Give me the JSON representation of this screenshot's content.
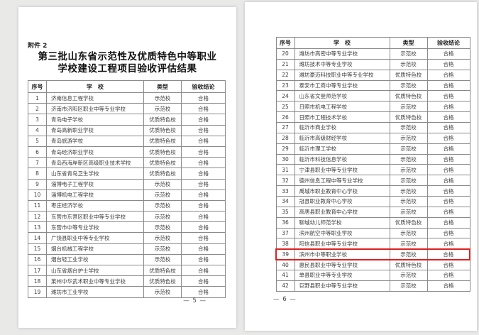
{
  "page_left": {
    "attachment_label": "附件 2",
    "title_line1": "第三批山东省示范性及优质特色中等职业",
    "title_line2": "学校建设工程项目验收评估结果",
    "page_number": "— 5 —",
    "table": {
      "headers": [
        "序号",
        "学　校",
        "类型",
        "验收结论"
      ],
      "rows": [
        [
          "1",
          "济南信息工程学校",
          "示范校",
          "合格"
        ],
        [
          "2",
          "济南市济阳区职业中等专业学校",
          "示范校",
          "合格"
        ],
        [
          "3",
          "青岛电子学校",
          "优质特色校",
          "合格"
        ],
        [
          "4",
          "青岛高新职业学校",
          "优质特色校",
          "合格"
        ],
        [
          "5",
          "青岛旅游学校",
          "优质特色校",
          "合格"
        ],
        [
          "6",
          "青岛经济职业学校",
          "优质特色校",
          "合格"
        ],
        [
          "7",
          "青岛西海岸新区高级职业技术学校",
          "优质特色校",
          "合格"
        ],
        [
          "8",
          "山东省青岛卫生学校",
          "优质特色校",
          "合格"
        ],
        [
          "9",
          "淄博电子工程学校",
          "示范校",
          "合格"
        ],
        [
          "10",
          "淄博机电工程学校",
          "示范校",
          "合格"
        ],
        [
          "11",
          "枣庄经济学校",
          "示范校",
          "合格"
        ],
        [
          "12",
          "东营市东营区职业中等专业学校",
          "示范校",
          "合格"
        ],
        [
          "13",
          "东营市中等专业学校",
          "示范校",
          "合格"
        ],
        [
          "14",
          "广饶县职业中等专业学校",
          "示范校",
          "合格"
        ],
        [
          "15",
          "烟台机械工程学校",
          "示范校",
          "合格"
        ],
        [
          "16",
          "烟台轻工业学校",
          "示范校",
          "合格"
        ],
        [
          "17",
          "山东省烟台护士学校",
          "优质特色校",
          "合格"
        ],
        [
          "18",
          "莱州中华武术职业中等专业学校",
          "优质特色校",
          "合格"
        ],
        [
          "19",
          "潍坊市工业学校",
          "示范校",
          "合格"
        ]
      ]
    }
  },
  "page_right": {
    "page_number": "— 6 —",
    "highlighted_row": "39",
    "highlight_color": "#dd2120",
    "table": {
      "headers": [
        "序号",
        "学　校",
        "类型",
        "验收结论"
      ],
      "rows": [
        [
          "20",
          "潍坊市高密中等专业学校",
          "示范校",
          "合格"
        ],
        [
          "21",
          "潍坊技术中等专业学校",
          "示范校",
          "合格"
        ],
        [
          "22",
          "潍坊豪迈科技职业中等专业学校",
          "优质特色校",
          "合格"
        ],
        [
          "23",
          "泰安市工商中等专业学校",
          "示范校",
          "合格"
        ],
        [
          "24",
          "山东省文登师范学校",
          "优质特色校",
          "合格"
        ],
        [
          "25",
          "日照市机电工程学校",
          "示范校",
          "合格"
        ],
        [
          "26",
          "日照市工程技术学校",
          "优质特色校",
          "合格"
        ],
        [
          "27",
          "临沂市商业学校",
          "示范校",
          "合格"
        ],
        [
          "28",
          "临沂市高级财经学校",
          "示范校",
          "合格"
        ],
        [
          "29",
          "临沂市理工学校",
          "示范校",
          "合格"
        ],
        [
          "30",
          "临沂市科技信息学校",
          "示范校",
          "合格"
        ],
        [
          "31",
          "宁津县职业中等专业学校",
          "示范校",
          "合格"
        ],
        [
          "32",
          "德州信息工程中等专业学校",
          "示范校",
          "合格"
        ],
        [
          "33",
          "禹城市职业教育中心学校",
          "示范校",
          "合格"
        ],
        [
          "34",
          "冠县职业教育中心学校",
          "示范校",
          "合格"
        ],
        [
          "35",
          "高唐县职业教育中心学校",
          "示范校",
          "合格"
        ],
        [
          "36",
          "聊城幼儿师范学校",
          "优质特色校",
          "合格"
        ],
        [
          "37",
          "滨州航空中等职业学校",
          "示范校",
          "合格"
        ],
        [
          "38",
          "阳信县职业中等专业学校",
          "示范校",
          "合格"
        ],
        [
          "39",
          "滨州市中等职业学校",
          "示范校",
          "合格"
        ],
        [
          "40",
          "惠民县职业中等专业学校",
          "优质特色校",
          "合格"
        ],
        [
          "41",
          "单县职业中等专业学校",
          "示范校",
          "合格"
        ],
        [
          "42",
          "巨野县职业中等专业学校",
          "示范校",
          "合格"
        ]
      ]
    }
  }
}
